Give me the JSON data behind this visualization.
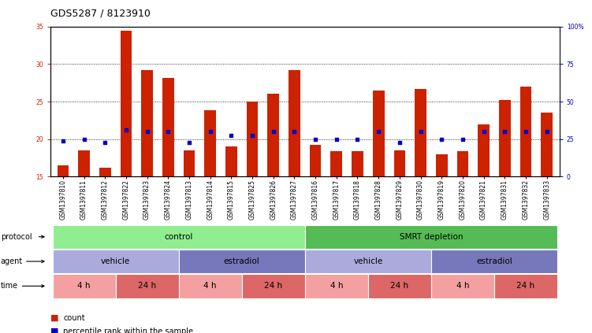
{
  "title": "GDS5287 / 8123910",
  "samples": [
    "GSM1397810",
    "GSM1397811",
    "GSM1397812",
    "GSM1397822",
    "GSM1397823",
    "GSM1397824",
    "GSM1397813",
    "GSM1397814",
    "GSM1397815",
    "GSM1397825",
    "GSM1397826",
    "GSM1397827",
    "GSM1397816",
    "GSM1397817",
    "GSM1397818",
    "GSM1397828",
    "GSM1397829",
    "GSM1397830",
    "GSM1397819",
    "GSM1397820",
    "GSM1397821",
    "GSM1397831",
    "GSM1397832",
    "GSM1397833"
  ],
  "bar_values": [
    16.5,
    18.5,
    16.2,
    34.5,
    29.2,
    28.2,
    18.5,
    23.8,
    19.0,
    25.0,
    26.0,
    29.2,
    19.2,
    18.4,
    18.4,
    26.5,
    18.5,
    26.7,
    18.0,
    18.4,
    22.0,
    25.2,
    27.0,
    23.5
  ],
  "dot_values": [
    19.8,
    20.0,
    19.5,
    21.2,
    21.0,
    21.0,
    19.5,
    21.0,
    20.5,
    20.5,
    21.0,
    21.0,
    20.0,
    20.0,
    20.0,
    21.0,
    19.5,
    21.0,
    20.0,
    20.0,
    21.0,
    21.0,
    21.0,
    21.0
  ],
  "bar_color": "#CC2200",
  "dot_color": "#0000CC",
  "ylim_left": [
    15,
    35
  ],
  "ylim_right": [
    0,
    100
  ],
  "yticks_left": [
    15,
    20,
    25,
    30,
    35
  ],
  "yticks_right": [
    0,
    25,
    50,
    75,
    100
  ],
  "grid_lines": [
    20,
    25,
    30
  ],
  "bg_color": "#FFFFFF",
  "plot_bg": "#FFFFFF",
  "protocol_bands": [
    {
      "label": "control",
      "start": 0,
      "end": 11,
      "color": "#90EE90"
    },
    {
      "label": "SMRT depletion",
      "start": 12,
      "end": 23,
      "color": "#55BB55"
    }
  ],
  "agent_bands": [
    {
      "label": "vehicle",
      "start": 0,
      "end": 5,
      "color": "#AAAADD"
    },
    {
      "label": "estradiol",
      "start": 6,
      "end": 11,
      "color": "#7777BB"
    },
    {
      "label": "vehicle",
      "start": 12,
      "end": 17,
      "color": "#AAAADD"
    },
    {
      "label": "estradiol",
      "start": 18,
      "end": 23,
      "color": "#7777BB"
    }
  ],
  "time_bands": [
    {
      "label": "4 h",
      "start": 0,
      "end": 2,
      "color": "#F4A0A0"
    },
    {
      "label": "24 h",
      "start": 3,
      "end": 5,
      "color": "#DD6666"
    },
    {
      "label": "4 h",
      "start": 6,
      "end": 8,
      "color": "#F4A0A0"
    },
    {
      "label": "24 h",
      "start": 9,
      "end": 11,
      "color": "#DD6666"
    },
    {
      "label": "4 h",
      "start": 12,
      "end": 14,
      "color": "#F4A0A0"
    },
    {
      "label": "24 h",
      "start": 15,
      "end": 17,
      "color": "#DD6666"
    },
    {
      "label": "4 h",
      "start": 18,
      "end": 20,
      "color": "#F4A0A0"
    },
    {
      "label": "24 h",
      "start": 21,
      "end": 23,
      "color": "#DD6666"
    }
  ],
  "label_color_left": "#CC2200",
  "label_color_right": "#0000CC",
  "bar_width": 0.55,
  "title_fontsize": 9,
  "tick_fontsize": 5.5,
  "band_label_fontsize": 7.5,
  "row_label_fontsize": 7,
  "legend_fontsize": 7
}
